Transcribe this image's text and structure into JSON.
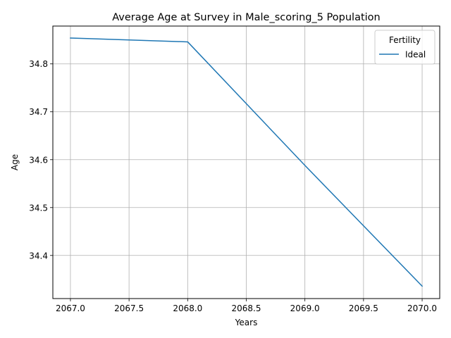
{
  "chart_data": {
    "type": "line",
    "title": "Average Age at Survey in Male_scoring_5 Population",
    "xlabel": "Years",
    "ylabel": "Age",
    "xlim": [
      2066.85,
      2070.15
    ],
    "ylim": [
      34.31,
      34.879
    ],
    "xticks": [
      2067.0,
      2067.5,
      2068.0,
      2068.5,
      2069.0,
      2069.5,
      2070.0
    ],
    "xtick_labels": [
      "2067.0",
      "2067.5",
      "2068.0",
      "2068.5",
      "2069.0",
      "2069.5",
      "2070.0"
    ],
    "yticks": [
      34.4,
      34.5,
      34.6,
      34.7,
      34.8
    ],
    "ytick_labels": [
      "34.4",
      "34.5",
      "34.6",
      "34.7",
      "34.8"
    ],
    "grid": true,
    "legend": {
      "title": "Fertility",
      "placement": "top-right"
    },
    "series": [
      {
        "name": "Ideal",
        "color": "#1f77b4",
        "x": [
          2067,
          2068,
          2069,
          2070
        ],
        "y": [
          34.854,
          34.846,
          34.588,
          34.336
        ]
      }
    ]
  }
}
